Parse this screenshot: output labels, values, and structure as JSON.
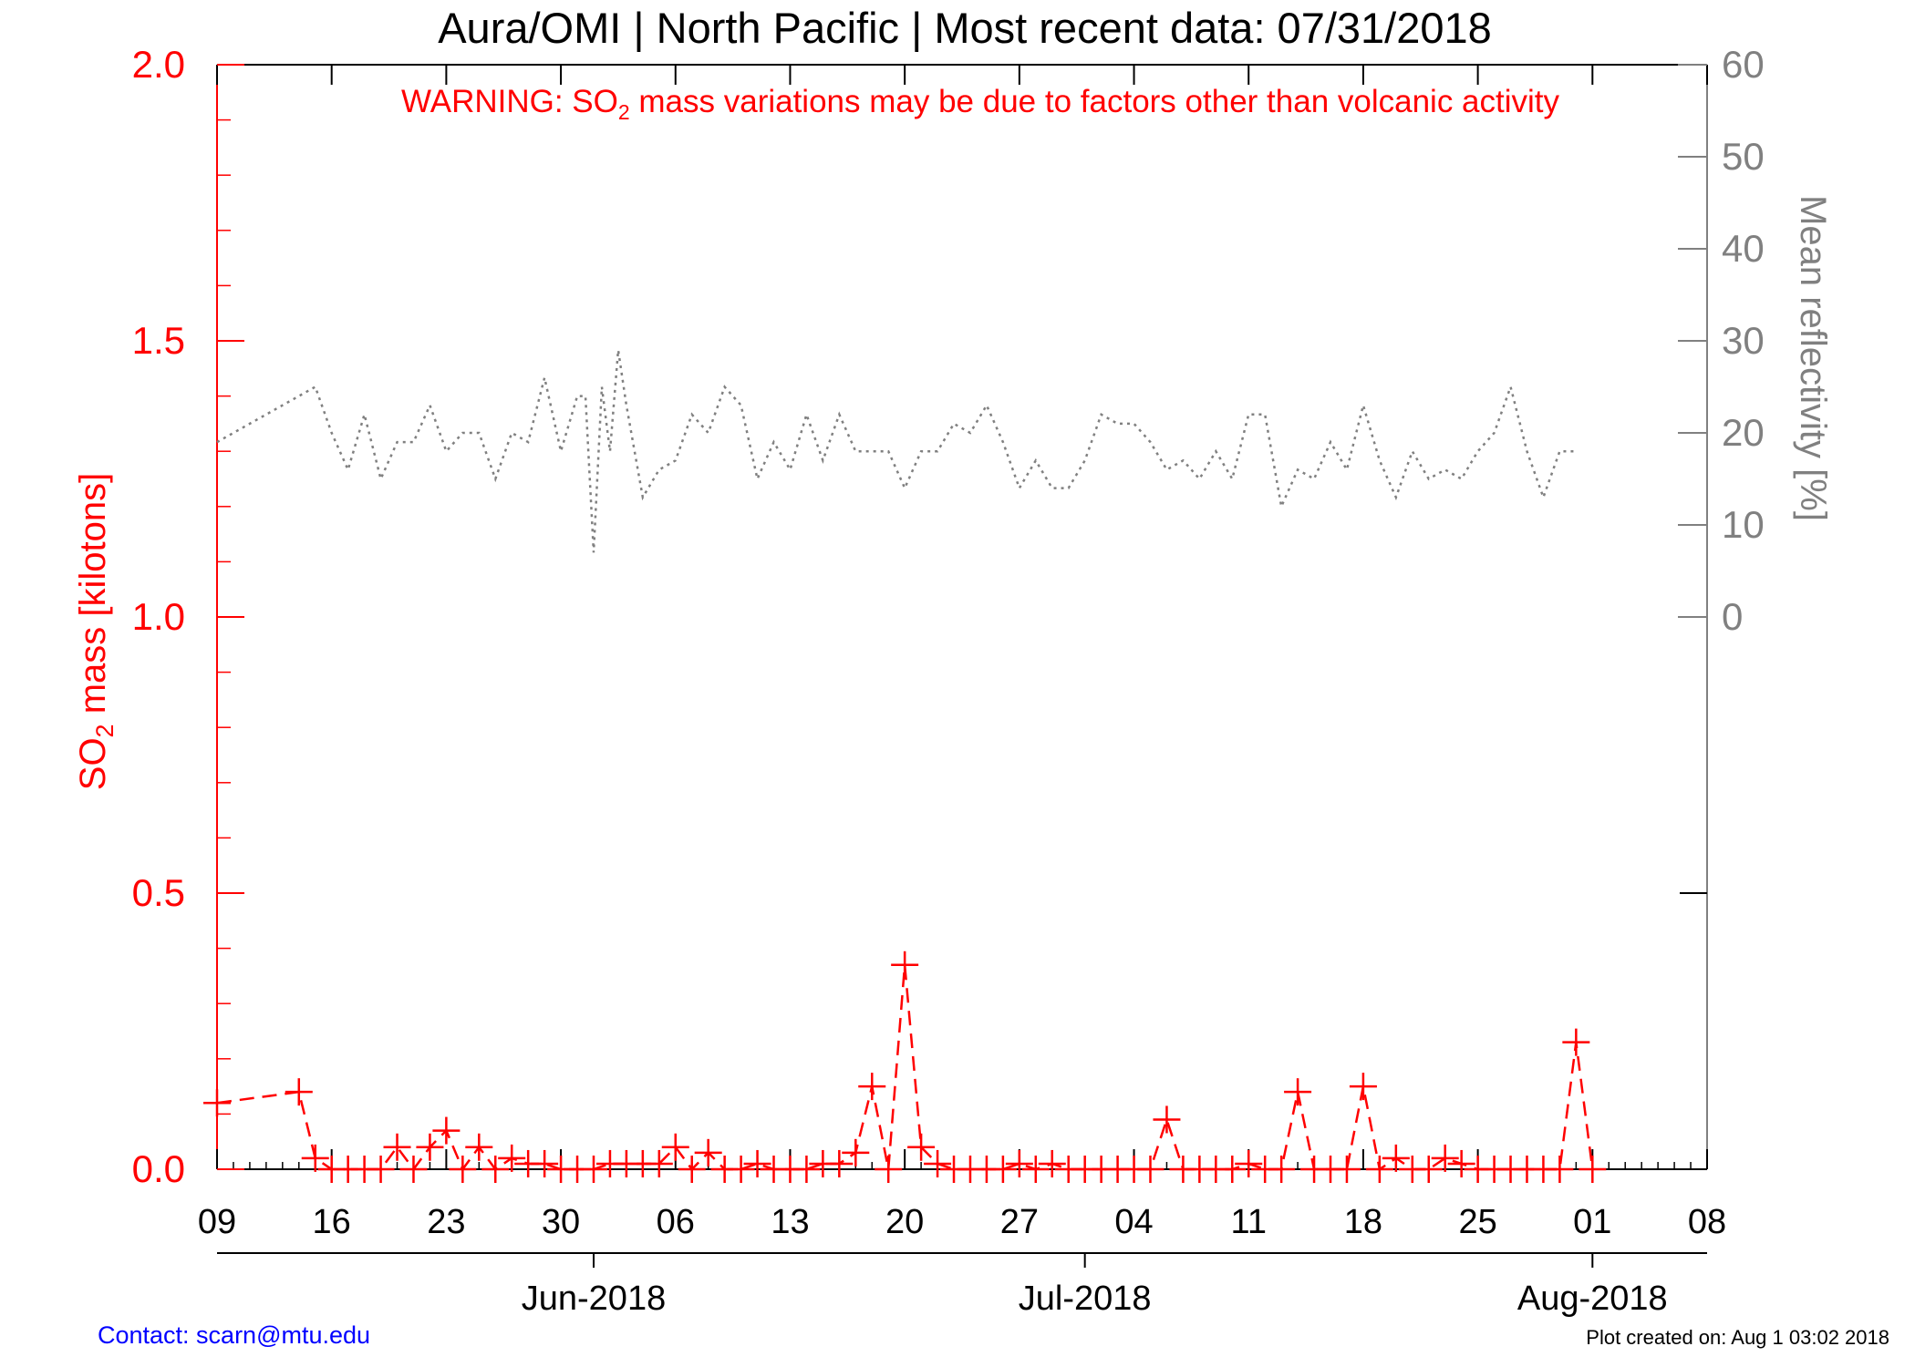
{
  "chart_data": {
    "type": "line",
    "title": "Aura/OMI | North Pacific | Most recent data: 07/31/2018",
    "warning": {
      "pre": "WARNING: SO",
      "sub": "2",
      "post": " mass variations may be due to factors other than volcanic activity"
    },
    "ylabel_left": {
      "pre": "SO",
      "sub": "2",
      "post": " mass [kilotons]"
    },
    "ylabel_right": "Mean reflectivity [%]",
    "x_range_days": [
      0,
      91
    ],
    "x_start_date": "2018-05-09",
    "x_day_ticks": [
      {
        "day": 0,
        "label": "09"
      },
      {
        "day": 7,
        "label": "16"
      },
      {
        "day": 14,
        "label": "23"
      },
      {
        "day": 21,
        "label": "30"
      },
      {
        "day": 28,
        "label": "06"
      },
      {
        "day": 35,
        "label": "13"
      },
      {
        "day": 42,
        "label": "20"
      },
      {
        "day": 49,
        "label": "27"
      },
      {
        "day": 56,
        "label": "04"
      },
      {
        "day": 63,
        "label": "11"
      },
      {
        "day": 70,
        "label": "18"
      },
      {
        "day": 77,
        "label": "25"
      },
      {
        "day": 84,
        "label": "01"
      },
      {
        "day": 91,
        "label": "08"
      }
    ],
    "x_month_ticks": [
      {
        "day": 23,
        "label": "Jun-2018"
      },
      {
        "day": 53,
        "label": "Jul-2018"
      },
      {
        "day": 84,
        "label": "Aug-2018"
      }
    ],
    "yleft_range": [
      0,
      2.0
    ],
    "yleft_ticks": [
      {
        "v": 0,
        "label": "0.0"
      },
      {
        "v": 0.5,
        "label": "0.5"
      },
      {
        "v": 1.0,
        "label": "1.0"
      },
      {
        "v": 1.5,
        "label": "1.5"
      },
      {
        "v": 2.0,
        "label": "2.0"
      }
    ],
    "yright_range": [
      -60,
      60
    ],
    "yright_ticks": [
      {
        "v": 0,
        "label": "0"
      },
      {
        "v": 10,
        "label": "10"
      },
      {
        "v": 20,
        "label": "20"
      },
      {
        "v": 30,
        "label": "30"
      },
      {
        "v": 40,
        "label": "40"
      },
      {
        "v": 50,
        "label": "50"
      },
      {
        "v": 60,
        "label": "60"
      }
    ],
    "colors": {
      "so2": "#ff0000",
      "reflectivity": "#808080",
      "axis": "#000000"
    },
    "series": [
      {
        "key": "so2",
        "name": "",
        "axis": "left",
        "style": "dashed-plus",
        "points": [
          [
            0,
            0.12
          ],
          [
            5,
            0.14
          ],
          [
            6,
            0.02
          ],
          [
            7,
            0.0
          ],
          [
            8,
            0.0
          ],
          [
            9,
            0.0
          ],
          [
            10,
            0.0
          ],
          [
            11,
            0.04
          ],
          [
            12,
            0.0
          ],
          [
            13,
            0.04
          ],
          [
            14,
            0.07
          ],
          [
            15,
            0.0
          ],
          [
            16,
            0.04
          ],
          [
            17,
            0.0
          ],
          [
            18,
            0.02
          ],
          [
            19,
            0.01
          ],
          [
            20,
            0.01
          ],
          [
            21,
            0.0
          ],
          [
            22,
            0.0
          ],
          [
            23,
            0.0
          ],
          [
            24,
            0.01
          ],
          [
            25,
            0.01
          ],
          [
            26,
            0.01
          ],
          [
            27,
            0.01
          ],
          [
            28,
            0.04
          ],
          [
            29,
            0.0
          ],
          [
            30,
            0.03
          ],
          [
            31,
            0.0
          ],
          [
            32,
            0.0
          ],
          [
            33,
            0.01
          ],
          [
            34,
            0.0
          ],
          [
            35,
            0.0
          ],
          [
            36,
            0.0
          ],
          [
            37,
            0.01
          ],
          [
            38,
            0.01
          ],
          [
            39,
            0.03
          ],
          [
            40,
            0.15
          ],
          [
            41,
            0.0
          ],
          [
            42,
            0.37
          ],
          [
            43,
            0.04
          ],
          [
            44,
            0.01
          ],
          [
            45,
            0.0
          ],
          [
            46,
            0.0
          ],
          [
            47,
            0.0
          ],
          [
            48,
            0.0
          ],
          [
            49,
            0.01
          ],
          [
            50,
            0.0
          ],
          [
            51,
            0.01
          ],
          [
            52,
            0.0
          ],
          [
            53,
            0.0
          ],
          [
            54,
            0.0
          ],
          [
            55,
            0.0
          ],
          [
            56,
            0.0
          ],
          [
            57,
            0.0
          ],
          [
            58,
            0.09
          ],
          [
            59,
            0.0
          ],
          [
            60,
            0.0
          ],
          [
            61,
            0.0
          ],
          [
            62,
            0.0
          ],
          [
            63,
            0.01
          ],
          [
            64,
            0.0
          ],
          [
            65,
            0.0
          ],
          [
            66,
            0.14
          ],
          [
            67,
            0.0
          ],
          [
            68,
            0.0
          ],
          [
            69,
            0.0
          ],
          [
            70,
            0.15
          ],
          [
            71,
            0.0
          ],
          [
            72,
            0.02
          ],
          [
            73,
            0.0
          ],
          [
            74,
            0.0
          ],
          [
            75,
            0.02
          ],
          [
            76,
            0.01
          ],
          [
            77,
            0.0
          ],
          [
            78,
            0.0
          ],
          [
            79,
            0.0
          ],
          [
            80,
            0.0
          ],
          [
            81,
            0.0
          ],
          [
            82,
            0.0
          ],
          [
            83,
            0.23
          ],
          [
            84,
            0.0
          ]
        ]
      },
      {
        "key": "reflectivity",
        "name": "",
        "axis": "right",
        "style": "dotted",
        "points": [
          [
            0,
            19
          ],
          [
            2,
            21
          ],
          [
            4,
            23
          ],
          [
            6,
            25
          ],
          [
            7,
            20
          ],
          [
            8,
            16
          ],
          [
            9,
            22
          ],
          [
            10,
            15
          ],
          [
            11,
            19
          ],
          [
            12,
            19
          ],
          [
            13,
            23
          ],
          [
            14,
            18
          ],
          [
            15,
            20
          ],
          [
            16,
            20
          ],
          [
            17,
            15
          ],
          [
            18,
            20
          ],
          [
            19,
            19
          ],
          [
            20,
            26
          ],
          [
            21,
            18
          ],
          [
            22,
            24
          ],
          [
            22.5,
            24
          ],
          [
            23,
            7
          ],
          [
            23.5,
            25
          ],
          [
            24,
            18
          ],
          [
            24.5,
            29
          ],
          [
            25,
            23
          ],
          [
            26,
            13
          ],
          [
            27,
            16
          ],
          [
            28,
            17
          ],
          [
            29,
            22
          ],
          [
            30,
            20
          ],
          [
            31,
            25
          ],
          [
            32,
            23
          ],
          [
            33,
            15
          ],
          [
            34,
            19
          ],
          [
            35,
            16
          ],
          [
            36,
            22
          ],
          [
            37,
            17
          ],
          [
            38,
            22
          ],
          [
            39,
            18
          ],
          [
            40,
            18
          ],
          [
            41,
            18
          ],
          [
            42,
            14
          ],
          [
            43,
            18
          ],
          [
            44,
            18
          ],
          [
            45,
            21
          ],
          [
            46,
            20
          ],
          [
            47,
            23
          ],
          [
            48,
            19
          ],
          [
            49,
            14
          ],
          [
            50,
            17
          ],
          [
            51,
            14
          ],
          [
            52,
            14
          ],
          [
            53,
            17
          ],
          [
            54,
            22
          ],
          [
            55,
            21
          ],
          [
            56,
            21
          ],
          [
            57,
            19
          ],
          [
            58,
            16
          ],
          [
            59,
            17
          ],
          [
            60,
            15
          ],
          [
            61,
            18
          ],
          [
            62,
            15
          ],
          [
            63,
            22
          ],
          [
            64,
            22
          ],
          [
            65,
            12
          ],
          [
            66,
            16
          ],
          [
            67,
            15
          ],
          [
            68,
            19
          ],
          [
            69,
            16
          ],
          [
            70,
            23
          ],
          [
            71,
            17
          ],
          [
            72,
            13
          ],
          [
            73,
            18
          ],
          [
            74,
            15
          ],
          [
            75,
            16
          ],
          [
            76,
            15
          ],
          [
            77,
            18
          ],
          [
            78,
            20
          ],
          [
            79,
            25
          ],
          [
            80,
            18
          ],
          [
            81,
            13
          ],
          [
            82,
            18
          ],
          [
            83,
            18
          ]
        ]
      }
    ]
  },
  "footer": {
    "contact": "Contact: scarn@mtu.edu",
    "created": "Plot created on: Aug  1 03:02 2018"
  }
}
